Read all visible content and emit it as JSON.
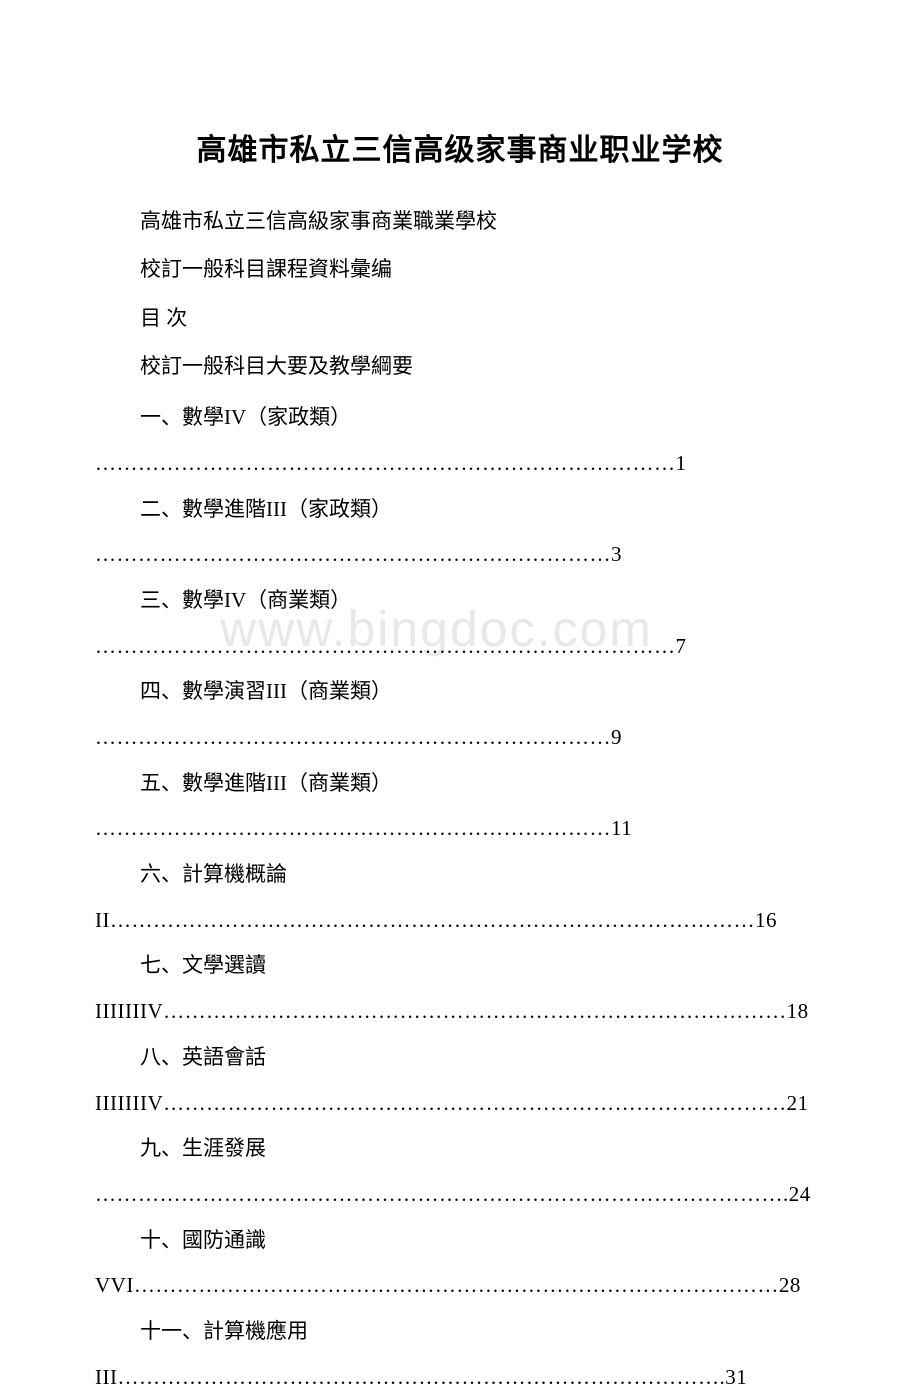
{
  "title": "高雄市私立三信高级家事商业职业学校",
  "lines": {
    "l1": "高雄市私立三信高級家事商業職業學校",
    "l2": "校訂一般科目課程資料彙编",
    "l3": "目 次",
    "l4": "校訂一般科目大要及教學綱要"
  },
  "toc": {
    "i1_head": "一、數學IV（家政類）",
    "i1_dots": "………………………………………………………………………1",
    "i2_head": "二、數學進階III（家政類）",
    "i2_dots": "………………………………………………………………3",
    "i3_head": "三、數學IV（商業類）",
    "i3_dots": "………………………………………………………………………7",
    "i4_head": "四、數學演習III（商業類）",
    "i4_dots": "………………………………………………………………9",
    "i5_head": "五、數學進階III（商業類）",
    "i5_dots": "………………………………………………………………11",
    "i6_head": "六、計算機概論",
    "i6_dots": "II………………………………………………………………………………16",
    "i7_head": "七、文學選讀",
    "i7_dots": "IIIIIIIV……………………………………………………………………………18",
    "i8_head": "八、英語會話",
    "i8_dots": "IIIIIIIV……………………………………………………………………………21",
    "i9_head": "九、生涯發展",
    "i9_dots": "…………………………………………………………………………………….24",
    "i10_head": "十、國防通識",
    "i10_dots": "VVI………………………………………………………………………………28",
    "i11_head": "十一、計算機應用",
    "i11_dots": "III………………………………………………………………………….31"
  },
  "watermark": "www.bingdoc.com"
}
